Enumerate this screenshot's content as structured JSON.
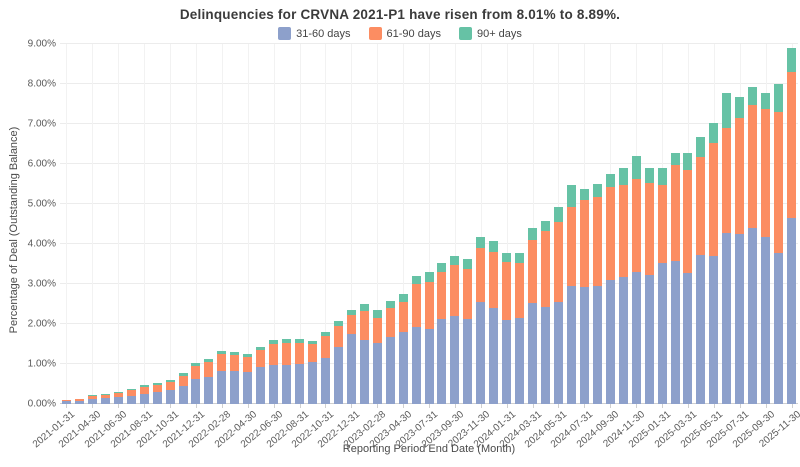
{
  "chart_data": {
    "type": "bar",
    "stacked": true,
    "title": "Delinquencies for CRVNA 2021-P1 have risen from 8.01% to 8.89%.",
    "xlabel": "Reporting Period End Date (Month)",
    "ylabel": "Percentage of Deal (Outstanding Balance)",
    "ylim": [
      0,
      9
    ],
    "y_tick_step": 1,
    "y_tick_suffix": "%",
    "grid": true,
    "legend_position": "top-center",
    "x_label_every": 2,
    "x_label_rotation": -40,
    "categories": [
      "2021-01-31",
      "2021-03-31",
      "2021-04-30",
      "2021-05-31",
      "2021-06-30",
      "2021-07-31",
      "2021-08-31",
      "2021-09-30",
      "2021-10-31",
      "2021-11-30",
      "2021-12-31",
      "2022-01-31",
      "2022-02-28",
      "2022-03-31",
      "2022-04-30",
      "2022-05-31",
      "2022-06-30",
      "2022-07-31",
      "2022-08-31",
      "2022-09-30",
      "2022-10-31",
      "2022-11-30",
      "2022-12-31",
      "2023-01-31",
      "2023-02-28",
      "2023-03-31",
      "2023-04-30",
      "2023-06-30",
      "2023-07-31",
      "2023-08-31",
      "2023-09-30",
      "2023-10-31",
      "2023-11-30",
      "2023-12-31",
      "2024-01-31",
      "2024-02-29",
      "2024-03-31",
      "2024-04-30",
      "2024-05-31",
      "2024-06-30",
      "2024-07-31",
      "2024-08-31",
      "2024-09-30",
      "2024-10-31",
      "2024-11-30",
      "2024-12-31",
      "2025-01-31",
      "2025-02-28",
      "2025-03-31",
      "2025-04-30",
      "2025-05-31",
      "2025-06-30",
      "2025-07-31",
      "2025-08-31",
      "2025-09-30",
      "2025-10-31",
      "2025-11-30"
    ],
    "series": [
      {
        "name": "31-60 days",
        "color": "#8da0cb",
        "values": [
          0.07,
          0.08,
          0.12,
          0.15,
          0.18,
          0.21,
          0.26,
          0.3,
          0.35,
          0.45,
          0.62,
          0.67,
          0.83,
          0.83,
          0.8,
          0.93,
          0.97,
          0.97,
          1.0,
          1.05,
          1.14,
          1.43,
          1.74,
          1.6,
          1.52,
          1.67,
          1.79,
          1.92,
          1.87,
          2.12,
          2.2,
          2.12,
          2.55,
          2.39,
          2.1,
          2.14,
          2.53,
          2.43,
          2.56,
          2.95,
          2.92,
          2.96,
          3.1,
          3.18,
          3.29,
          3.23,
          3.52,
          3.58,
          3.27,
          3.73,
          3.71,
          4.27,
          4.24,
          4.39,
          4.18,
          3.77,
          4.64
        ]
      },
      {
        "name": "61-90 days",
        "color": "#fc8d62",
        "values": [
          0.03,
          0.05,
          0.07,
          0.07,
          0.09,
          0.13,
          0.16,
          0.17,
          0.2,
          0.25,
          0.33,
          0.38,
          0.41,
          0.39,
          0.38,
          0.42,
          0.54,
          0.55,
          0.52,
          0.45,
          0.55,
          0.52,
          0.49,
          0.73,
          0.64,
          0.73,
          0.77,
          1.08,
          1.19,
          1.19,
          1.28,
          1.25,
          1.35,
          1.42,
          1.46,
          1.39,
          1.58,
          1.9,
          2.0,
          1.98,
          2.18,
          2.22,
          2.32,
          2.29,
          2.33,
          2.29,
          1.96,
          2.39,
          2.58,
          2.45,
          2.81,
          2.63,
          2.9,
          3.09,
          3.19,
          3.54,
          3.67
        ]
      },
      {
        "name": "90+ days",
        "color": "#66c2a5",
        "values": [
          0.0,
          0.0,
          0.03,
          0.03,
          0.04,
          0.04,
          0.05,
          0.06,
          0.06,
          0.07,
          0.08,
          0.08,
          0.09,
          0.08,
          0.08,
          0.08,
          0.09,
          0.1,
          0.1,
          0.07,
          0.1,
          0.13,
          0.12,
          0.18,
          0.18,
          0.17,
          0.18,
          0.19,
          0.23,
          0.21,
          0.23,
          0.25,
          0.28,
          0.26,
          0.21,
          0.25,
          0.29,
          0.25,
          0.36,
          0.54,
          0.27,
          0.31,
          0.33,
          0.42,
          0.58,
          0.38,
          0.43,
          0.3,
          0.43,
          0.5,
          0.5,
          0.88,
          0.53,
          0.44,
          0.4,
          0.7,
          0.58
        ]
      }
    ],
    "annotations": {
      "from_value": "8.01%",
      "to_value": "8.89%"
    }
  }
}
